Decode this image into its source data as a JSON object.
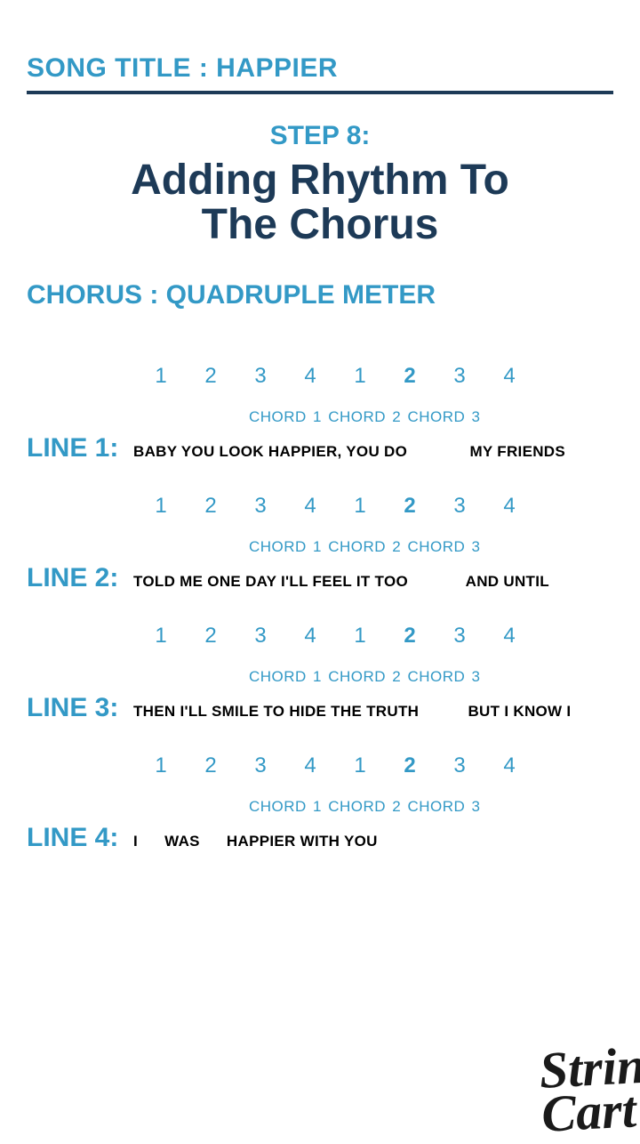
{
  "colors": {
    "accent": "#3399c6",
    "dark": "#1d3a57",
    "text": "#000000",
    "background": "#ffffff"
  },
  "song_title": "SONG TITLE : HAPPIER",
  "step": "STEP 8:",
  "heading_line1": "Adding Rhythm To",
  "heading_line2": "The Chorus",
  "meter": "CHORUS : QUADRUPLE METER",
  "beats": [
    "1",
    "2",
    "3",
    "4",
    "1",
    "2",
    "3",
    "4"
  ],
  "beats_bold_index": 5,
  "chords_text": "CHORD 1 CHORD 2  CHORD 3",
  "lines": [
    {
      "label": "LINE 1:",
      "lyric": "BABY YOU LOOK HAPPIER, YOU DO              MY FRIENDS"
    },
    {
      "label": "LINE 2:",
      "lyric": "TOLD ME ONE DAY I'LL FEEL IT TOO             AND UNTIL"
    },
    {
      "label": "LINE 3:",
      "lyric": "THEN I'LL SMILE TO HIDE THE TRUTH           BUT I KNOW I"
    },
    {
      "label": "LINE 4:",
      "lyric": "I      WAS      HAPPIER WITH YOU"
    }
  ],
  "logo_line1": "String",
  "logo_line2": "Cart"
}
